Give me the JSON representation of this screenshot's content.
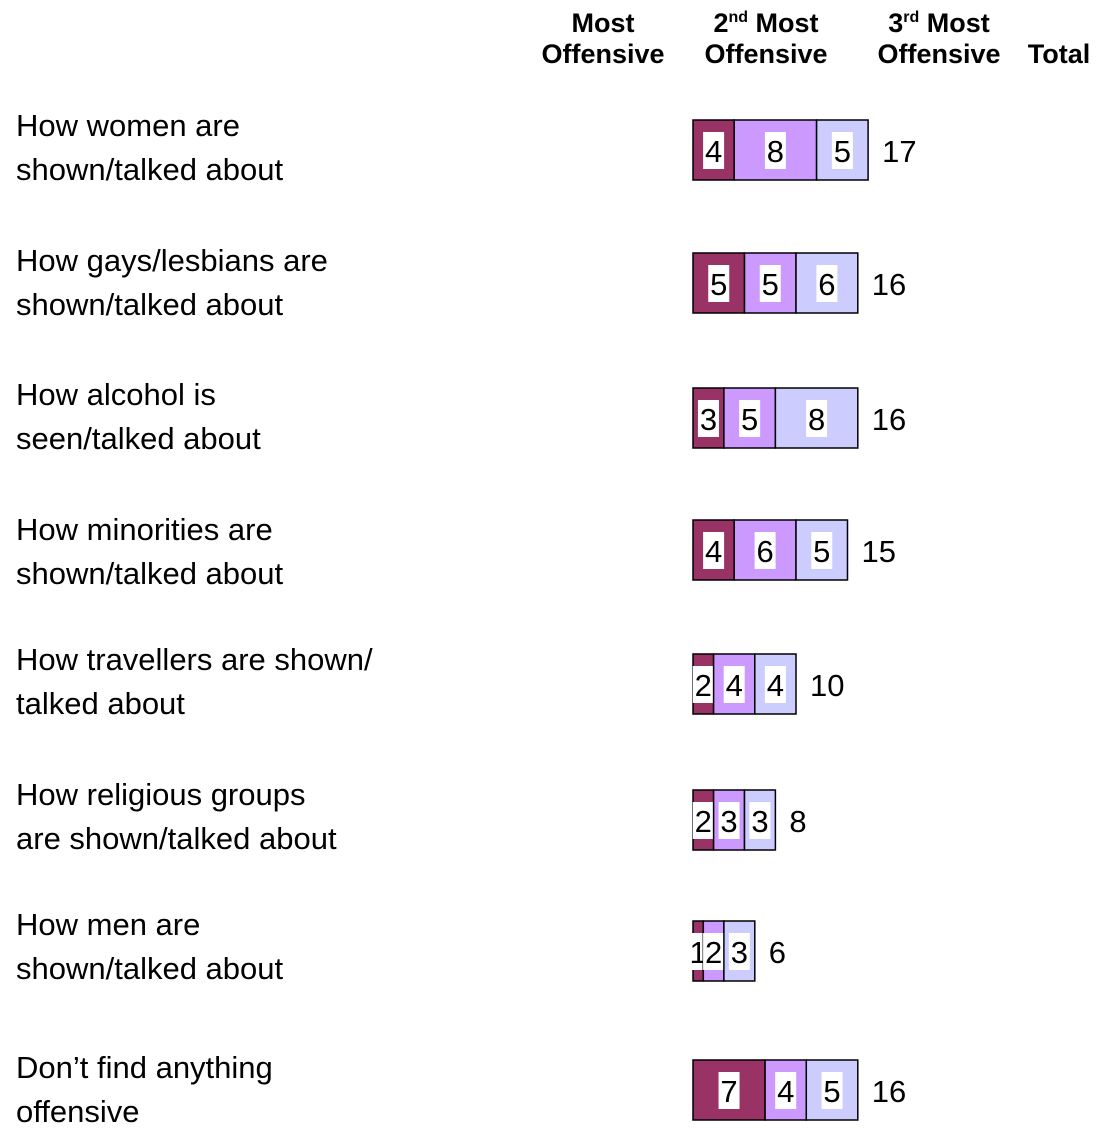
{
  "header": {
    "col1_line1": "Most",
    "col1_line2": "Offensive",
    "col2_line1_num": "2",
    "col2_line1_sup": "nd",
    "col2_line1_rest": " Most",
    "col2_line2": "Offensive",
    "col3_line1_num": "3",
    "col3_line1_sup": "rd",
    "col3_line1_rest": " Most",
    "col3_line2": "Offensive",
    "col4": "Total"
  },
  "chart_data": {
    "type": "bar",
    "orientation": "horizontal",
    "stacked": true,
    "categories": [
      "How women are\nshown/talked about",
      "How gays/lesbians are\nshown/talked about",
      "How alcohol is\nseen/talked about",
      "How minorities are\nshown/talked about",
      "How travellers are shown/\ntalked about",
      "How religious groups\nare shown/talked about",
      "How men are\nshown/talked about",
      "Don’t find anything\noffensive"
    ],
    "series": [
      {
        "name": "Most Offensive",
        "color": "#993366",
        "values": [
          4,
          5,
          3,
          4,
          2,
          2,
          1,
          7
        ],
        "labels": [
          "4",
          "5",
          "3",
          "4",
          "2",
          "2",
          "1",
          "7"
        ]
      },
      {
        "name": "2nd Most Offensive",
        "color": "#cc99ff",
        "values": [
          8,
          5,
          5,
          6,
          4,
          3,
          2,
          4
        ],
        "labels": [
          "8",
          "5",
          "5",
          "6",
          "4",
          "3",
          "2",
          "4"
        ]
      },
      {
        "name": "3rd Most Offensive",
        "color": "#ccccff",
        "values": [
          5,
          6,
          8,
          5,
          4,
          3,
          3,
          5
        ],
        "labels": [
          "5",
          "6",
          "8",
          "5",
          "4",
          "3",
          "3",
          "5"
        ]
      }
    ],
    "totals": [
      "17",
      "16",
      "16",
      "15",
      "10",
      "8",
      "6",
      "16"
    ],
    "grid": false,
    "legend": "none"
  }
}
